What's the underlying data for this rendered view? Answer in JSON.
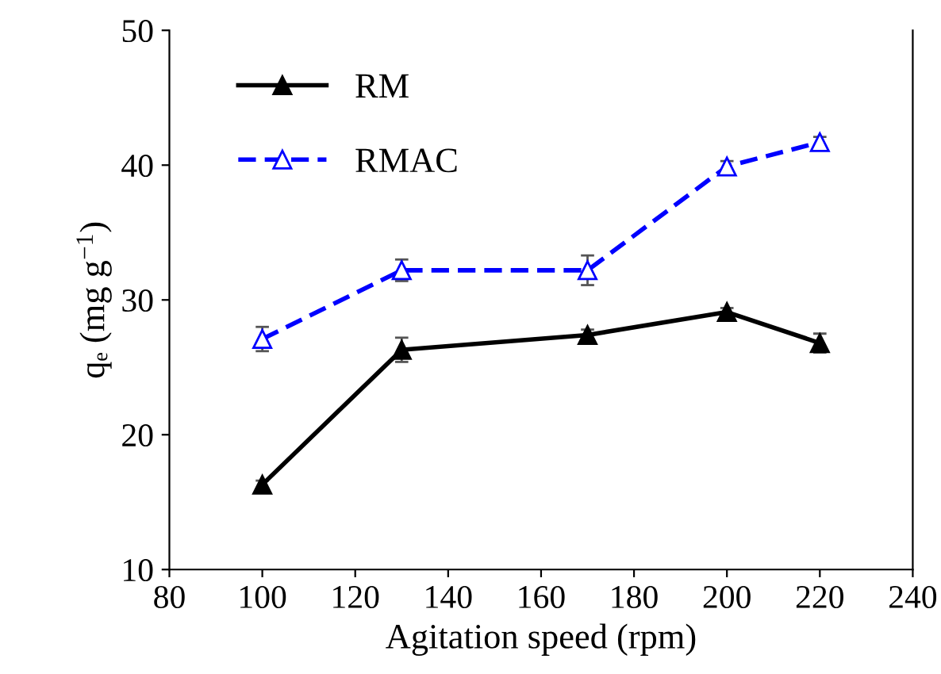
{
  "chart_data": {
    "type": "line",
    "xlabel": "Agitation speed (rpm)",
    "ylabel": "qₑ (mg g$^{−1}$)",
    "x": [
      100,
      130,
      170,
      200,
      220
    ],
    "series": [
      {
        "name": "RM",
        "color": "#000000",
        "values": [
          16.3,
          26.3,
          27.4,
          29.1,
          26.8
        ],
        "errors": [
          0.3,
          0.9,
          0.4,
          0.3,
          0.7
        ],
        "marker": "triangle",
        "line_style": "solid"
      },
      {
        "name": "RMAC",
        "color": "#0000ff",
        "values": [
          27.1,
          32.2,
          32.2,
          39.9,
          41.7
        ],
        "errors": [
          0.9,
          0.8,
          1.1,
          0.4,
          0.4
        ],
        "marker": "triangle",
        "line_style": "dashed"
      }
    ],
    "xlim": [
      80,
      240
    ],
    "xticks": [
      80,
      100,
      120,
      140,
      160,
      180,
      200,
      220,
      240
    ],
    "ylim": [
      10,
      50
    ],
    "yticks": [
      10,
      20,
      30,
      40,
      50
    ],
    "grid": false,
    "legend": "top left"
  }
}
